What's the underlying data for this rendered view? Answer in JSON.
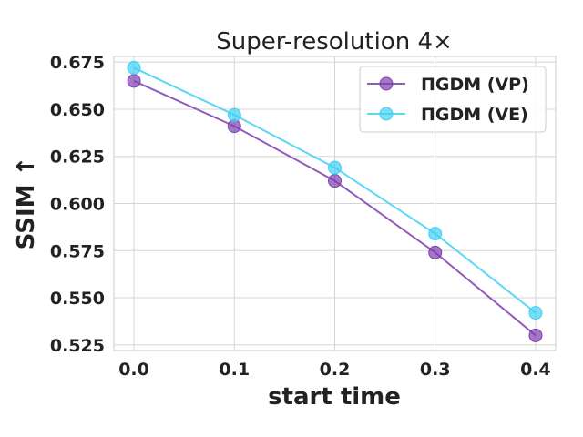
{
  "chart_data": {
    "type": "line",
    "title": "Super-resolution 4×",
    "xlabel": "start time",
    "ylabel": "SSIM ↑",
    "x": [
      0.0,
      0.1,
      0.2,
      0.3,
      0.4
    ],
    "xticks": [
      "0.0",
      "0.1",
      "0.2",
      "0.3",
      "0.4"
    ],
    "yticks": [
      "0.525",
      "0.550",
      "0.575",
      "0.600",
      "0.625",
      "0.650",
      "0.675"
    ],
    "xlim": [
      -0.02,
      0.42
    ],
    "ylim": [
      0.522,
      0.678
    ],
    "grid": true,
    "legend_position": "top-right",
    "series": [
      {
        "name": "ΠGDM (VP)",
        "color": "#7e3fb0",
        "values": [
          0.665,
          0.641,
          0.612,
          0.574,
          0.53
        ]
      },
      {
        "name": "ΠGDM (VE)",
        "color": "#3fd0f5",
        "values": [
          0.672,
          0.647,
          0.619,
          0.584,
          0.542
        ]
      }
    ]
  }
}
